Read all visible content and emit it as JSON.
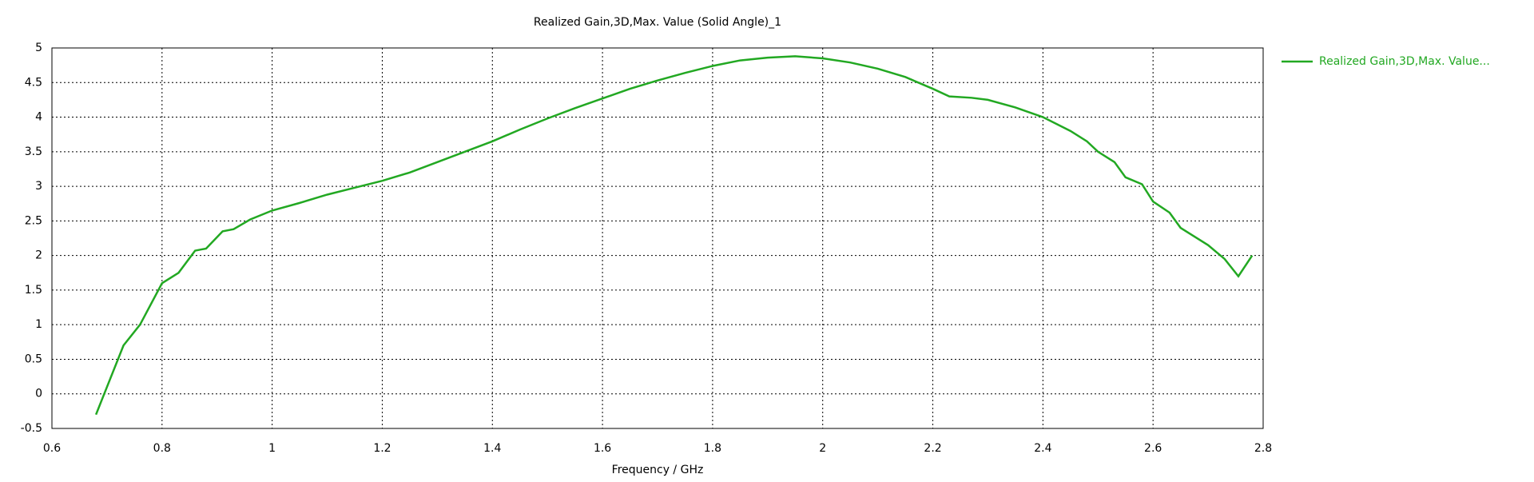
{
  "chart_data": {
    "type": "line",
    "title": "Realized Gain,3D,Max. Value (Solid Angle)_1",
    "x_label": "Frequency / GHz",
    "x": [
      0.68,
      0.7,
      0.73,
      0.76,
      0.8,
      0.83,
      0.86,
      0.88,
      0.91,
      0.93,
      0.96,
      1.0,
      1.05,
      1.1,
      1.15,
      1.2,
      1.25,
      1.3,
      1.35,
      1.4,
      1.45,
      1.5,
      1.55,
      1.6,
      1.65,
      1.7,
      1.75,
      1.8,
      1.85,
      1.9,
      1.95,
      2.0,
      2.05,
      2.1,
      2.15,
      2.2,
      2.23,
      2.27,
      2.3,
      2.35,
      2.4,
      2.45,
      2.48,
      2.5,
      2.53,
      2.55,
      2.58,
      2.6,
      2.63,
      2.65,
      2.7,
      2.73,
      2.755,
      2.78
    ],
    "series": [
      {
        "name": "Realized Gain,3D,Max. Value...",
        "color": "#22a822",
        "values": [
          -0.3,
          0.1,
          0.7,
          1.0,
          1.6,
          1.75,
          2.07,
          2.1,
          2.35,
          2.38,
          2.52,
          2.65,
          2.76,
          2.88,
          2.98,
          3.08,
          3.2,
          3.35,
          3.5,
          3.65,
          3.82,
          3.98,
          4.13,
          4.27,
          4.41,
          4.53,
          4.64,
          4.74,
          4.82,
          4.86,
          4.88,
          4.85,
          4.79,
          4.7,
          4.58,
          4.41,
          4.3,
          4.28,
          4.25,
          4.14,
          4.0,
          3.8,
          3.65,
          3.5,
          3.35,
          3.13,
          3.03,
          2.78,
          2.62,
          2.4,
          2.15,
          1.95,
          1.7,
          2.0
        ]
      }
    ],
    "xlim": [
      0.6,
      2.8
    ],
    "xticks": [
      0.6,
      0.8,
      1,
      1.2,
      1.4,
      1.6,
      1.8,
      2,
      2.2,
      2.4,
      2.6,
      2.8
    ],
    "ylim": [
      -0.5,
      5
    ],
    "yticks": [
      -0.5,
      0,
      0.5,
      1,
      1.5,
      2,
      2.5,
      3,
      3.5,
      4,
      4.5,
      5
    ],
    "grid": true,
    "legend": "right"
  }
}
